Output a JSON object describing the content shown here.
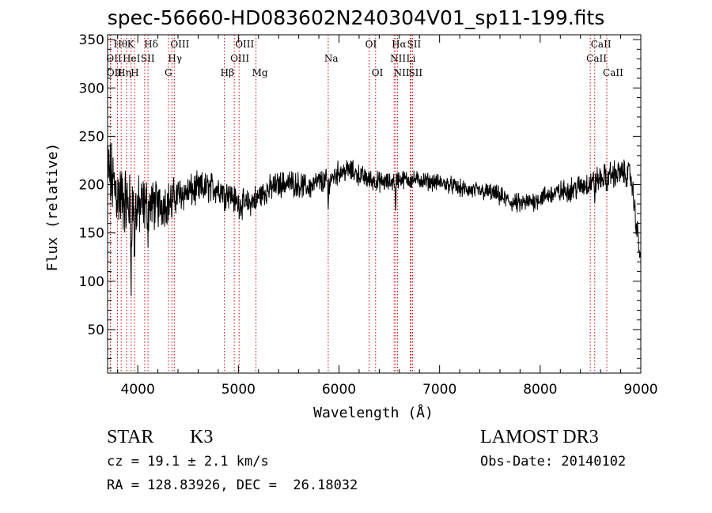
{
  "chart_data": {
    "type": "line",
    "title": "spec-56660-HD083602N240304V01_sp11-199.fits",
    "xlabel": "Wavelength (Å)",
    "ylabel": "Flux (relative)",
    "xlim": [
      3700,
      9000
    ],
    "ylim": [
      5,
      355
    ],
    "x_ticks": [
      4000,
      5000,
      6000,
      7000,
      8000,
      9000
    ],
    "y_ticks": [
      50,
      100,
      150,
      200,
      250,
      300,
      350
    ],
    "series": [
      {
        "name": "flux",
        "baseline": [
          [
            3700,
            215
          ],
          [
            3800,
            190
          ],
          [
            3900,
            180
          ],
          [
            4000,
            175
          ],
          [
            4100,
            180
          ],
          [
            4200,
            178
          ],
          [
            4300,
            182
          ],
          [
            4400,
            190
          ],
          [
            4500,
            192
          ],
          [
            4600,
            195
          ],
          [
            4700,
            197
          ],
          [
            4800,
            196
          ],
          [
            4900,
            192
          ],
          [
            5000,
            180
          ],
          [
            5100,
            180
          ],
          [
            5200,
            188
          ],
          [
            5300,
            195
          ],
          [
            5400,
            200
          ],
          [
            5500,
            202
          ],
          [
            5600,
            200
          ],
          [
            5700,
            197
          ],
          [
            5800,
            203
          ],
          [
            5900,
            204
          ],
          [
            6000,
            213
          ],
          [
            6100,
            215
          ],
          [
            6200,
            210
          ],
          [
            6300,
            205
          ],
          [
            6400,
            203
          ],
          [
            6500,
            202
          ],
          [
            6600,
            206
          ],
          [
            6700,
            205
          ],
          [
            6800,
            205
          ],
          [
            6900,
            203
          ],
          [
            7000,
            202
          ],
          [
            7100,
            200
          ],
          [
            7200,
            196
          ],
          [
            7300,
            194
          ],
          [
            7400,
            193
          ],
          [
            7500,
            192
          ],
          [
            7600,
            188
          ],
          [
            7700,
            182
          ],
          [
            7800,
            180
          ],
          [
            7900,
            182
          ],
          [
            8000,
            186
          ],
          [
            8100,
            190
          ],
          [
            8200,
            192
          ],
          [
            8300,
            195
          ],
          [
            8400,
            198
          ],
          [
            8500,
            202
          ],
          [
            8600,
            206
          ],
          [
            8700,
            210
          ],
          [
            8800,
            212
          ],
          [
            8900,
            210
          ],
          [
            9000,
            120
          ]
        ],
        "noise": [
          [
            3700,
            60
          ],
          [
            4000,
            50
          ],
          [
            4150,
            40
          ],
          [
            4400,
            28
          ],
          [
            5000,
            22
          ],
          [
            6000,
            18
          ],
          [
            6500,
            15
          ],
          [
            7000,
            13
          ],
          [
            8000,
            16
          ],
          [
            8500,
            20
          ],
          [
            9000,
            22
          ]
        ],
        "absorption_dips": [
          [
            3933,
            80
          ],
          [
            3968,
            60
          ],
          [
            4101,
            25
          ],
          [
            4340,
            15
          ],
          [
            4861,
            15
          ],
          [
            5175,
            15
          ],
          [
            5893,
            30
          ],
          [
            6563,
            40
          ],
          [
            8542,
            15
          ],
          [
            8662,
            15
          ]
        ]
      }
    ],
    "line_markers": [
      {
        "label": "Hθ",
        "x": 3798,
        "row": 1
      },
      {
        "label": "OII",
        "x": 3727,
        "row": 2
      },
      {
        "label": "OII",
        "x": 3730,
        "row": 3
      },
      {
        "label": "K",
        "x": 3934,
        "row": 1
      },
      {
        "label": "HeI",
        "x": 3889,
        "row": 2
      },
      {
        "label": "Hη",
        "x": 3835,
        "row": 3
      },
      {
        "label": "Hδ",
        "x": 4102,
        "row": 1
      },
      {
        "label": "SII",
        "x": 4069,
        "row": 2
      },
      {
        "label": "H",
        "x": 3968,
        "row": 3
      },
      {
        "label": "OIII",
        "x": 4363,
        "row": 1
      },
      {
        "label": "Hγ",
        "x": 4340,
        "row": 2
      },
      {
        "label": "G",
        "x": 4305,
        "row": 3
      },
      {
        "label": "OIII",
        "x": 5007,
        "row": 1
      },
      {
        "label": "OIII",
        "x": 4959,
        "row": 2
      },
      {
        "label": "Hβ",
        "x": 4861,
        "row": 3
      },
      {
        "label": "Mg",
        "x": 5175,
        "row": 3
      },
      {
        "label": "Na",
        "x": 5893,
        "row": 2
      },
      {
        "label": "OI",
        "x": 6300,
        "row": 1
      },
      {
        "label": "OI",
        "x": 6364,
        "row": 3
      },
      {
        "label": "Hα",
        "x": 6563,
        "row": 1
      },
      {
        "label": "NII",
        "x": 6548,
        "row": 2
      },
      {
        "label": "NII",
        "x": 6583,
        "row": 3
      },
      {
        "label": "SII",
        "x": 6716,
        "row": 1
      },
      {
        "label": "Li",
        "x": 6708,
        "row": 2
      },
      {
        "label": "SII",
        "x": 6731,
        "row": 3
      },
      {
        "label": "CaII",
        "x": 8542,
        "row": 1
      },
      {
        "label": "CaII",
        "x": 8498,
        "row": 2
      },
      {
        "label": "CaII",
        "x": 8662,
        "row": 3
      }
    ]
  },
  "info": {
    "class_label": "STAR",
    "subclass": "K3",
    "survey": "LAMOST DR3",
    "cz_line": "cz = 19.1 ± 2.1 km/s",
    "obs_date": "Obs-Date: 20140102",
    "coords": "RA = 128.83926, DEC =  26.18032"
  },
  "colors": {
    "axis": "#000000",
    "spectrum": "#000000",
    "marker": "#cc0000"
  }
}
